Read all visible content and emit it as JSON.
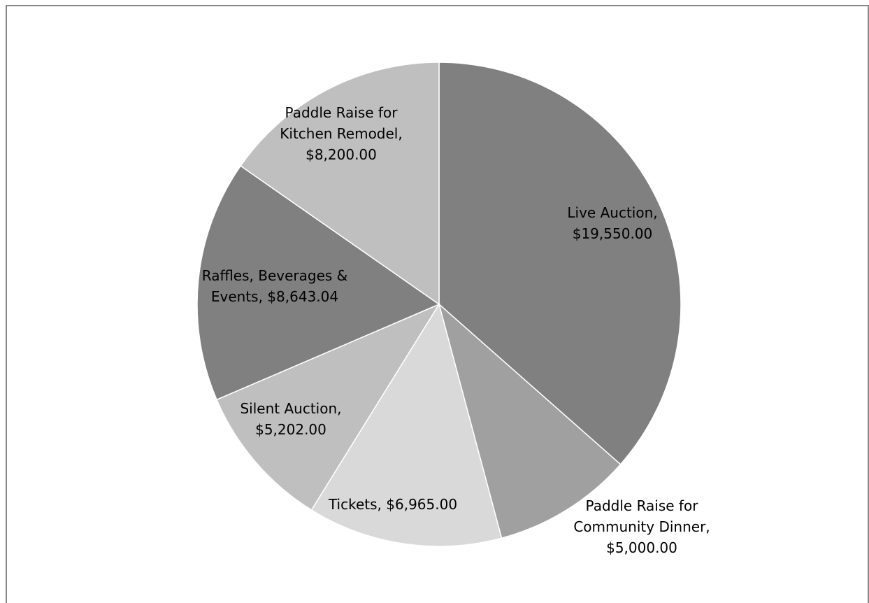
{
  "chart_data": {
    "type": "pie",
    "title": "",
    "legend": "none",
    "slices": [
      {
        "category": "Live Auction",
        "value": 19550.0,
        "label_lines": [
          "Live Auction,",
          "$19,550.00"
        ],
        "color": "#808080"
      },
      {
        "category": "Paddle Raise for Community Dinner",
        "value": 5000.0,
        "label_lines": [
          "Paddle Raise for",
          "Community Dinner,",
          "$5,000.00"
        ],
        "color": "#a0a0a0"
      },
      {
        "category": "Tickets",
        "value": 6965.0,
        "label_lines": [
          "Tickets,  $6,965.00"
        ],
        "color": "#d9d9d9"
      },
      {
        "category": "Silent Auction",
        "value": 5202.0,
        "label_lines": [
          "Silent Auction,",
          "$5,202.00"
        ],
        "color": "#bfbfbf"
      },
      {
        "category": "Raffles, Beverages & Events",
        "value": 8643.04,
        "label_lines": [
          "Raffles, Beverages &",
          "Events,  $8,643.04"
        ],
        "color": "#808080"
      },
      {
        "category": "Paddle Raise for Kitchen Remodel",
        "value": 8200.0,
        "label_lines": [
          "Paddle Raise for",
          "Kitchen Remodel,",
          "$8,200.00"
        ],
        "color": "#bfbfbf"
      }
    ]
  }
}
